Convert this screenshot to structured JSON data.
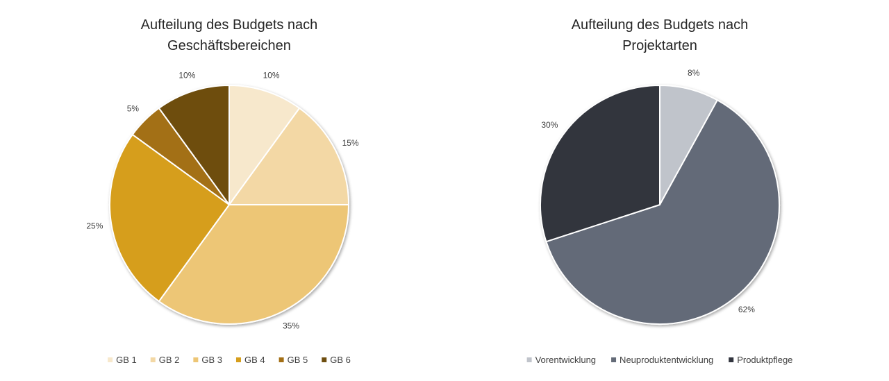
{
  "chart_data": [
    {
      "type": "pie",
      "title": "Aufteilung des Budgets nach Geschäftsbereichen",
      "title_lines": [
        "Aufteilung des Budgets nach",
        "Geschäftsbereichen"
      ],
      "categories": [
        "GB 1",
        "GB 2",
        "GB 3",
        "GB 4",
        "GB 5",
        "GB 6"
      ],
      "values": [
        10,
        15,
        35,
        25,
        5,
        10
      ],
      "value_labels": [
        "10%",
        "15%",
        "35%",
        "25%",
        "5%",
        "10%"
      ],
      "colors": [
        "#f7e8cc",
        "#f3d8a5",
        "#edc676",
        "#d69e1c",
        "#a36f15",
        "#6e4e10"
      ],
      "legend_position": "bottom"
    },
    {
      "type": "pie",
      "title": "Aufteilung des Budgets nach Projektarten",
      "title_lines": [
        "Aufteilung des Budgets nach",
        "Projektarten"
      ],
      "categories": [
        "Vorentwicklung",
        "Neuproduktentwicklung",
        "Produktpflege"
      ],
      "values": [
        8,
        62,
        30
      ],
      "value_labels": [
        "8%",
        "62%",
        "30%"
      ],
      "colors": [
        "#c0c4cb",
        "#646b78",
        "#32353e"
      ],
      "legend_position": "bottom"
    }
  ]
}
